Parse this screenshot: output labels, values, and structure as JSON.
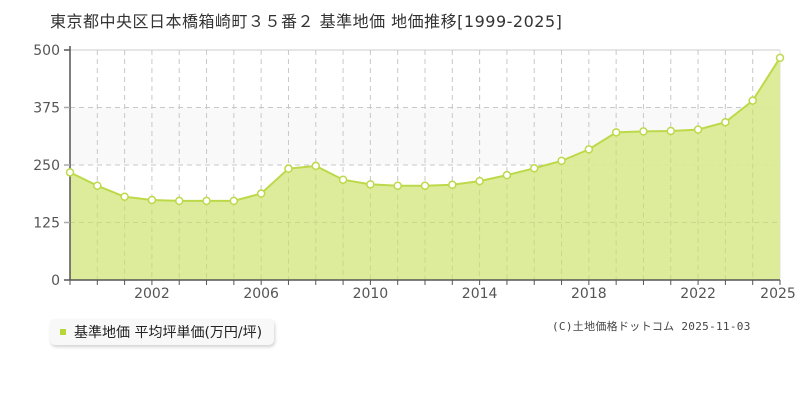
{
  "header": {
    "title": "東京都中央区日本橋箱崎町３５番２ 基準地価 地価推移[1999-2025]"
  },
  "legend": {
    "label": "基準地価 平均坪単価(万円/坪)",
    "color": "#b7d63c"
  },
  "footer": {
    "credit": "(C)土地価格ドットコム 2025-11-03"
  },
  "colors": {
    "fill": "#dbeb95",
    "line": "#bcd94a",
    "band": "#f9f9f9",
    "grid": "#c8c8c8",
    "axis": "#555555"
  },
  "chart_data": {
    "type": "area",
    "title": "東京都中央区日本橋箱崎町３５番２ 基準地価 地価推移[1999-2025]",
    "xlabel": "",
    "ylabel": "",
    "x": [
      1999,
      2000,
      2001,
      2002,
      2003,
      2004,
      2005,
      2006,
      2007,
      2008,
      2009,
      2010,
      2011,
      2012,
      2013,
      2014,
      2015,
      2016,
      2017,
      2018,
      2019,
      2020,
      2021,
      2022,
      2023,
      2024,
      2025
    ],
    "series": [
      {
        "name": "基準地価 平均坪単価(万円/坪)",
        "values": [
          234,
          205,
          181,
          174,
          172,
          172,
          172,
          188,
          242,
          248,
          218,
          208,
          205,
          205,
          207,
          215,
          228,
          243,
          259,
          284,
          321,
          323,
          324,
          327,
          343,
          390,
          483
        ]
      }
    ],
    "ylim": [
      0,
      500
    ],
    "yticks": [
      0,
      125,
      250,
      375,
      500
    ],
    "xticks": [
      2002,
      2006,
      2010,
      2014,
      2018,
      2022,
      2025
    ],
    "grid": true,
    "legend_position": "bottom-left"
  }
}
